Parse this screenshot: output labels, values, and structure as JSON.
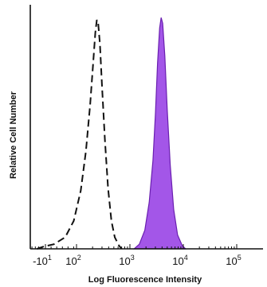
{
  "chart_data": {
    "type": "area",
    "xlabel": "Log Fluorescence Intensity",
    "ylabel": "Relative Cell Number",
    "x_scale": "log",
    "xlim": [
      -100,
      200000
    ],
    "ylim": [
      0,
      1.05
    ],
    "grid": false,
    "legend": "none",
    "x_ticks": [
      {
        "base": "-10",
        "exp": "1",
        "value": -10
      },
      {
        "base": "10",
        "exp": "2",
        "value": 100
      },
      {
        "base": "10",
        "exp": "3",
        "value": 1000
      },
      {
        "base": "10",
        "exp": "4",
        "value": 10000
      },
      {
        "base": "10",
        "exp": "5",
        "value": 100000
      }
    ],
    "series": [
      {
        "style": "dashed-outline",
        "color": "#111111",
        "points": [
          [
            -60,
            0.0
          ],
          [
            -20,
            0.01
          ],
          [
            20,
            0.02
          ],
          [
            60,
            0.05
          ],
          [
            90,
            0.12
          ],
          [
            120,
            0.25
          ],
          [
            150,
            0.42
          ],
          [
            180,
            0.62
          ],
          [
            205,
            0.8
          ],
          [
            225,
            0.93
          ],
          [
            240,
            0.985
          ],
          [
            255,
            0.97
          ],
          [
            275,
            0.88
          ],
          [
            300,
            0.7
          ],
          [
            340,
            0.47
          ],
          [
            390,
            0.26
          ],
          [
            450,
            0.12
          ],
          [
            520,
            0.05
          ],
          [
            620,
            0.015
          ],
          [
            700,
            0.0
          ]
        ]
      },
      {
        "style": "filled",
        "color": "#a356e8",
        "points": [
          [
            1200,
            0.0
          ],
          [
            1500,
            0.02
          ],
          [
            1900,
            0.08
          ],
          [
            2300,
            0.2
          ],
          [
            2700,
            0.38
          ],
          [
            3000,
            0.58
          ],
          [
            3300,
            0.8
          ],
          [
            3600,
            0.95
          ],
          [
            3850,
            0.995
          ],
          [
            4100,
            0.97
          ],
          [
            4500,
            0.83
          ],
          [
            5000,
            0.6
          ],
          [
            5700,
            0.36
          ],
          [
            6600,
            0.17
          ],
          [
            7800,
            0.06
          ],
          [
            9500,
            0.015
          ],
          [
            11000,
            0.0
          ]
        ]
      }
    ]
  }
}
